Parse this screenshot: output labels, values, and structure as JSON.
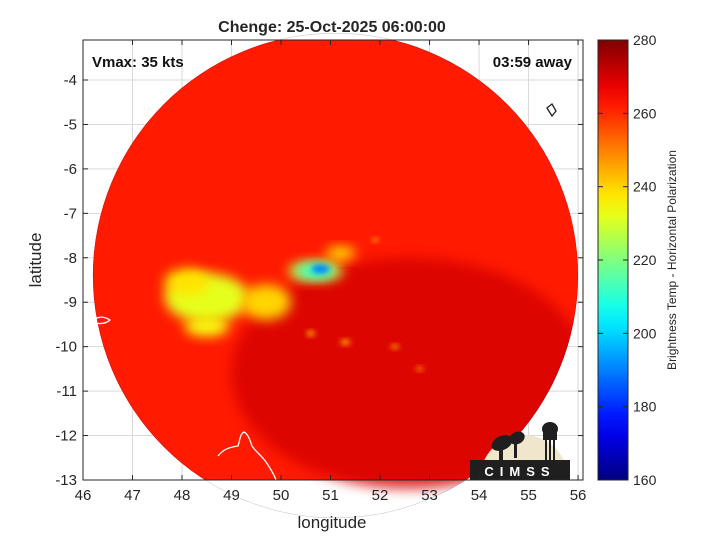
{
  "chart_data": {
    "type": "heatmap",
    "title": "Chenge: 25-Oct-2025 06:00:00",
    "xlabel": "longitude",
    "ylabel": "latitude",
    "xlim": [
      46,
      56.1
    ],
    "ylim": [
      -13,
      -3.1
    ],
    "x_ticks": [
      46,
      47,
      48,
      49,
      50,
      51,
      52,
      53,
      54,
      55,
      56
    ],
    "y_ticks": [
      -4,
      -5,
      -6,
      -7,
      -8,
      -9,
      -10,
      -11,
      -12,
      -13
    ],
    "grid": true,
    "annotations": {
      "vmax": "Vmax: 35 kts",
      "time_away": "03:59 away"
    },
    "colorbar": {
      "label": "Brightness Temp - Horizontal Polarization",
      "range": [
        160,
        280
      ],
      "ticks": [
        160,
        180,
        200,
        220,
        240,
        260,
        280
      ],
      "colormap": "jet"
    },
    "swath": {
      "center": [
        51.1,
        -8.4
      ],
      "radius_deg": 4.9
    },
    "features": [
      {
        "lon": 48.5,
        "lat": -8.9,
        "sx": 0.85,
        "sy": 0.55,
        "value": 232
      },
      {
        "lon": 48.1,
        "lat": -8.55,
        "sx": 0.45,
        "sy": 0.3,
        "value": 238
      },
      {
        "lon": 48.5,
        "lat": -9.55,
        "sx": 0.45,
        "sy": 0.22,
        "value": 234
      },
      {
        "lon": 49.7,
        "lat": -9.0,
        "sx": 0.5,
        "sy": 0.4,
        "value": 240
      },
      {
        "lon": 50.7,
        "lat": -8.3,
        "sx": 0.55,
        "sy": 0.22,
        "value": 230
      },
      {
        "lon": 50.7,
        "lat": -8.3,
        "sx": 0.4,
        "sy": 0.16,
        "value": 208
      },
      {
        "lon": 50.8,
        "lat": -8.25,
        "sx": 0.18,
        "sy": 0.1,
        "value": 190
      },
      {
        "lon": 51.2,
        "lat": -7.9,
        "sx": 0.3,
        "sy": 0.15,
        "value": 238
      },
      {
        "lon": 50.6,
        "lat": -9.7,
        "sx": 0.08,
        "sy": 0.06,
        "value": 242
      },
      {
        "lon": 51.3,
        "lat": -9.9,
        "sx": 0.1,
        "sy": 0.06,
        "value": 244
      },
      {
        "lon": 52.3,
        "lat": -10.0,
        "sx": 0.08,
        "sy": 0.05,
        "value": 244
      },
      {
        "lon": 52.8,
        "lat": -10.5,
        "sx": 0.07,
        "sy": 0.05,
        "value": 246
      },
      {
        "lon": 51.9,
        "lat": -7.6,
        "sx": 0.07,
        "sy": 0.05,
        "value": 246
      }
    ],
    "background_value": 262
  },
  "logo": {
    "text": "CIMSS",
    "colors": {
      "disc": "#efe6cc",
      "ink": "#1f1f1f",
      "text": "#ffffff"
    }
  },
  "colors": {
    "axis": "#262626",
    "grid": "#d9d9d9",
    "coast": "#ffffff"
  }
}
